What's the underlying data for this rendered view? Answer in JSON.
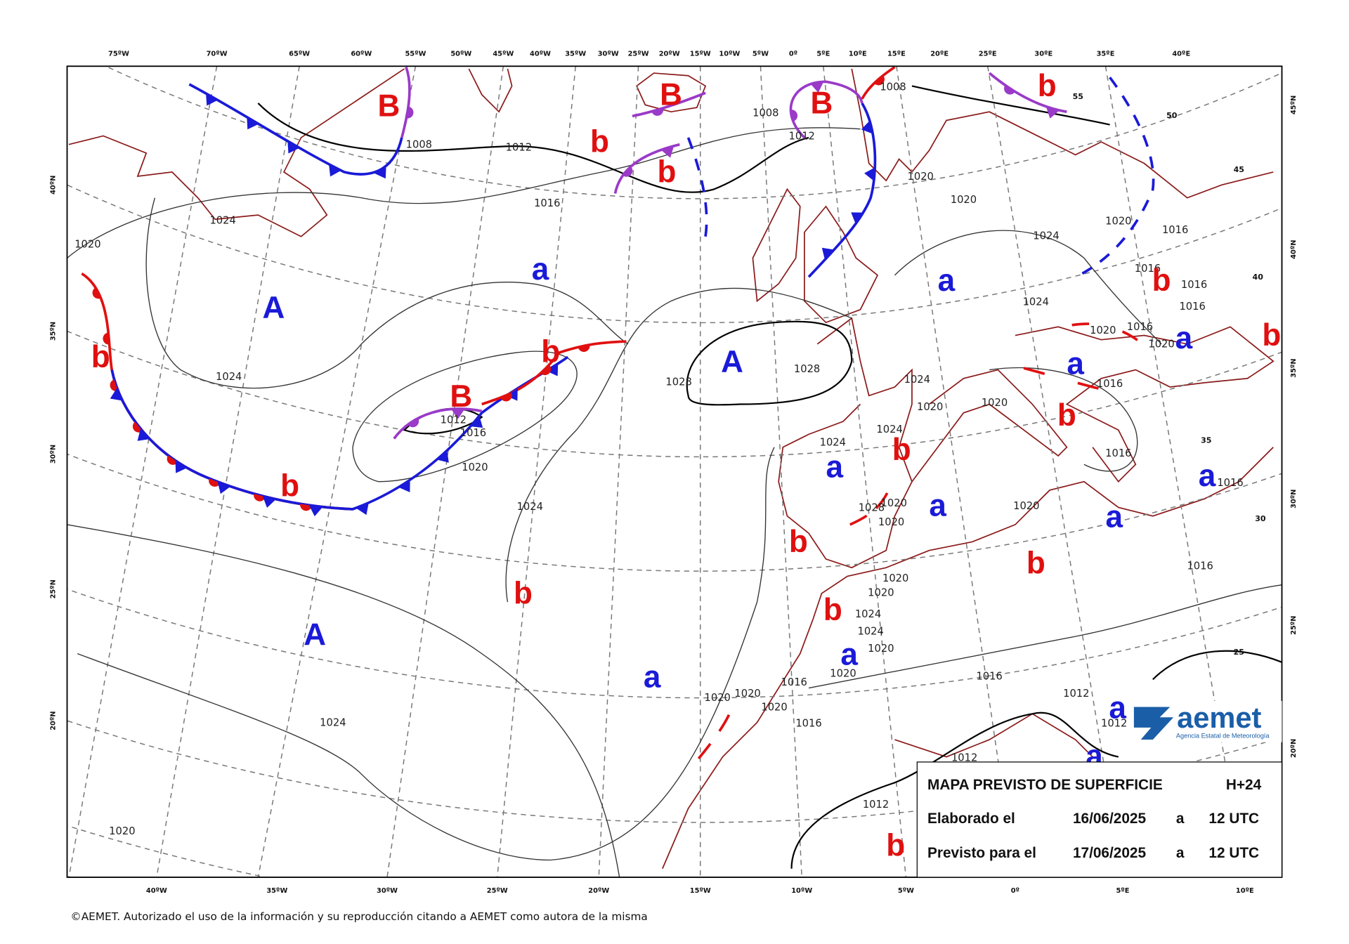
{
  "top_axis": [
    "75ºW",
    "70ºW",
    "65ºW",
    "60ºW",
    "55ºW",
    "50ºW",
    "45ºW",
    "40ºW",
    "35ºW",
    "30ºW",
    "25ºW",
    "20ºW",
    "15ºW",
    "10ºW",
    "5ºW",
    "0º",
    "5ºE",
    "10ºE",
    "15ºE",
    "20ºE",
    "25ºE",
    "30ºE",
    "35ºE",
    "40ºE"
  ],
  "bottom_axis": [
    "40ºW",
    "35ºW",
    "30ºW",
    "25ºW",
    "20ºW",
    "15ºW",
    "10ºW",
    "5ºW",
    "0º",
    "5ºE",
    "10ºE"
  ],
  "left_axis": [
    "40ºN",
    "35ºN",
    "30ºN",
    "25ºN",
    "20ºN"
  ],
  "right_axis": [
    "45ºN",
    "40ºN",
    "35ºN",
    "30ºN",
    "25ºN",
    "20ºN"
  ],
  "grid_labels": [
    "55",
    "50",
    "45",
    "40",
    "35",
    "30",
    "25"
  ],
  "pressure_centers": [
    {
      "label": "B",
      "color": "#e01010"
    },
    {
      "label": "B",
      "color": "#e01010"
    },
    {
      "label": "B",
      "color": "#e01010"
    },
    {
      "label": "b",
      "color": "#e01010"
    },
    {
      "label": "b",
      "color": "#e01010"
    },
    {
      "label": "b",
      "color": "#e01010"
    },
    {
      "label": "A",
      "color": "#1a1ad8"
    },
    {
      "label": "a",
      "color": "#1a1ad8"
    },
    {
      "label": "a",
      "color": "#1a1ad8"
    },
    {
      "label": "b",
      "color": "#e01010"
    },
    {
      "label": "b",
      "color": "#e01010"
    },
    {
      "label": "A",
      "color": "#1a1ad8"
    },
    {
      "label": "a",
      "color": "#1a1ad8"
    },
    {
      "label": "a",
      "color": "#1a1ad8"
    },
    {
      "label": "b",
      "color": "#e01010"
    },
    {
      "label": "B",
      "color": "#e01010"
    },
    {
      "label": "b",
      "color": "#e01010"
    },
    {
      "label": "b",
      "color": "#e01010"
    },
    {
      "label": "b",
      "color": "#e01010"
    },
    {
      "label": "a",
      "color": "#1a1ad8"
    },
    {
      "label": "a",
      "color": "#1a1ad8"
    },
    {
      "label": "b",
      "color": "#e01010"
    },
    {
      "label": "b",
      "color": "#e01010"
    },
    {
      "label": "a",
      "color": "#1a1ad8"
    },
    {
      "label": "a",
      "color": "#1a1ad8"
    },
    {
      "label": "b",
      "color": "#e01010"
    },
    {
      "label": "b",
      "color": "#e01010"
    },
    {
      "label": "b",
      "color": "#e01010"
    },
    {
      "label": "A",
      "color": "#1a1ad8"
    },
    {
      "label": "a",
      "color": "#1a1ad8"
    },
    {
      "label": "a",
      "color": "#1a1ad8"
    },
    {
      "label": "a",
      "color": "#1a1ad8"
    },
    {
      "label": "a",
      "color": "#1a1ad8"
    },
    {
      "label": "b",
      "color": "#e01010"
    }
  ],
  "isobar_labels": [
    "1012",
    "1008",
    "1016",
    "1024",
    "1020",
    "1024",
    "1028",
    "1028",
    "1024",
    "1024",
    "1024",
    "1020",
    "1020",
    "1008",
    "1008",
    "1012",
    "1020",
    "1016",
    "1016",
    "1020",
    "1020",
    "1016",
    "1020",
    "1020",
    "1016",
    "1012",
    "1020",
    "1024",
    "1024",
    "1024",
    "1020",
    "1028",
    "1020",
    "1020",
    "1020",
    "1020",
    "1024",
    "1020",
    "1020",
    "1024",
    "1016",
    "1020",
    "1020",
    "1020",
    "1016",
    "1016",
    "1012",
    "1012",
    "1012",
    "1012",
    "1024",
    "1020",
    "1016",
    "1016",
    "1016",
    "1016",
    "1016",
    "1016"
  ],
  "info_box": {
    "title": "MAPA PREVISTO DE SUPERFICIE",
    "forecast_hour": "H+24",
    "rows": [
      [
        "Elaborado el",
        "16/06/2025",
        "a",
        "12 UTC"
      ],
      [
        "Previsto para el",
        "17/06/2025",
        "a",
        "12 UTC"
      ]
    ]
  },
  "logo": {
    "name": "aemet",
    "subtitle": "Agencia Estatal de Meteorología"
  },
  "footer": "©AEMET. Autorizado el uso de la información y su reproducción citando a AEMET como autora de la misma"
}
